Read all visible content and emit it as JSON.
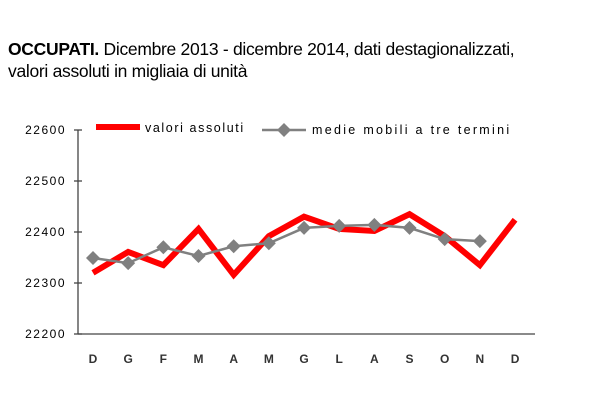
{
  "chart_data": {
    "type": "line",
    "title_bold": "OCCUPATI.",
    "title": "Dicembre 2013 - dicembre 2014, dati destagionalizzati,",
    "subtitle": "valori assoluti in migliaia di unità",
    "categories": [
      "D",
      "G",
      "F",
      "M",
      "A",
      "M",
      "G",
      "L",
      "A",
      "S",
      "O",
      "N",
      "D"
    ],
    "ylim": [
      22200,
      22600
    ],
    "yticks": [
      22200,
      22300,
      22400,
      22500,
      22600
    ],
    "grid": false,
    "legend": "top",
    "series": [
      {
        "name": "valori assoluti",
        "color": "#ff0000",
        "values": [
          22320,
          22361,
          22335,
          22406,
          22316,
          22392,
          22430,
          22406,
          22402,
          22435,
          22392,
          22335,
          22424
        ]
      },
      {
        "name": "medie mobili a tre termini",
        "color": "#808080",
        "values": [
          22349,
          22339,
          22370,
          22353,
          22372,
          22378,
          22408,
          22412,
          22414,
          22408,
          22386,
          22382,
          null
        ]
      }
    ]
  }
}
